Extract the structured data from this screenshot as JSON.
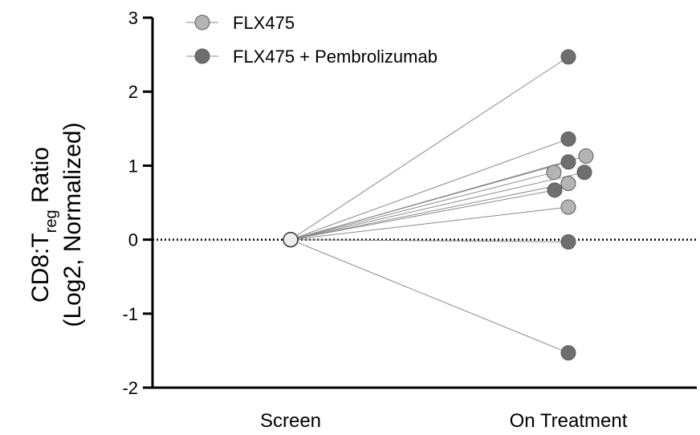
{
  "chart_data": {
    "type": "scatter",
    "categories": [
      "Screen",
      "On Treatment"
    ],
    "ylabel_line1_main": "CD8:T",
    "ylabel_line1_sub": "reg",
    "ylabel_line1_tail": " Ratio",
    "ylabel_line2": "(Log2, Normalized)",
    "ylim": [
      -2,
      3
    ],
    "yticks": [
      3,
      2,
      1,
      0,
      -1,
      -2
    ],
    "reference_line": 0,
    "legend": {
      "placement": "top-left",
      "entries": [
        {
          "name": "FLX475",
          "color": "#b4b4b4"
        },
        {
          "name": "FLX475 + Pembrolizumab",
          "color": "#6e6e6e"
        }
      ]
    },
    "baseline": {
      "category": "Screen",
      "value": 0,
      "color": "#ececec"
    },
    "series": [
      {
        "name": "FLX475",
        "color": "#b4b4b4",
        "values": [
          1.13,
          0.91,
          0.76,
          0.44
        ]
      },
      {
        "name": "FLX475 + Pembrolizumab",
        "color": "#6e6e6e",
        "values": [
          2.47,
          1.36,
          1.05,
          0.91,
          0.67,
          -0.03,
          -1.53
        ]
      }
    ],
    "points": [
      {
        "series": 1,
        "value": 2.47,
        "jitter": 0
      },
      {
        "series": 1,
        "value": 1.36,
        "jitter": 0
      },
      {
        "series": 0,
        "value": 1.13,
        "jitter": 22
      },
      {
        "series": 1,
        "value": 1.05,
        "jitter": 0
      },
      {
        "series": 0,
        "value": 0.91,
        "jitter": -18
      },
      {
        "series": 1,
        "value": 0.91,
        "jitter": 20
      },
      {
        "series": 0,
        "value": 0.76,
        "jitter": 0
      },
      {
        "series": 1,
        "value": 0.67,
        "jitter": -17
      },
      {
        "series": 0,
        "value": 0.44,
        "jitter": 0
      },
      {
        "series": 1,
        "value": -0.03,
        "jitter": 0
      },
      {
        "series": 1,
        "value": -1.53,
        "jitter": 0
      }
    ]
  }
}
